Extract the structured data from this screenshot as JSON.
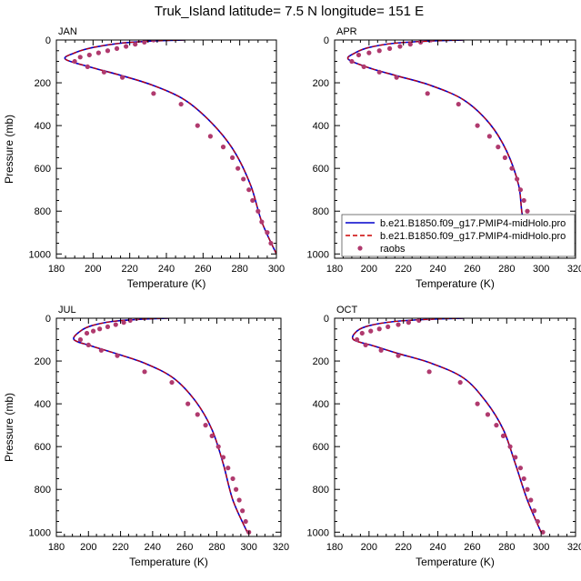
{
  "figure": {
    "title": "Truk_Island  latitude= 7.5 N longitude= 151 E"
  },
  "colors": {
    "model_1": "#0000cc",
    "model_2": "#cc0000",
    "raobs": "#b03a6e",
    "axis": "#000000"
  },
  "legend": {
    "placement": "right of APR panel, bottom",
    "entries": [
      {
        "label": "b.e21.B1850.f09_g17.PMIP4-midHolo.pro",
        "style": "solid",
        "color": "#0000cc"
      },
      {
        "label": "b.e21.B1850.f09_g17.PMIP4-midHolo.pro",
        "style": "dashed",
        "color": "#cc0000"
      },
      {
        "label": "raobs",
        "style": "marker",
        "color": "#b03a6e"
      }
    ]
  },
  "chart_data": [
    {
      "type": "line",
      "panel_label": "JAN",
      "xlabel": "Temperature (K)",
      "ylabel": "Pressure (mb)",
      "xlim": [
        180,
        300
      ],
      "ylim": [
        1020,
        0
      ],
      "xticks": [
        180,
        200,
        220,
        240,
        260,
        280,
        300
      ],
      "yticks": [
        0,
        200,
        400,
        600,
        800,
        1000
      ],
      "grid": false,
      "series": [
        {
          "name": "b.e21.B1850.f09_g17.PMIP4-midHolo.pro",
          "style": "solid",
          "x": [
            250,
            232,
            215,
            200,
            190,
            185,
            200,
            215,
            232,
            250,
            265,
            277,
            286,
            292,
            300
          ],
          "y": [
            0,
            5,
            15,
            35,
            60,
            90,
            130,
            165,
            210,
            280,
            390,
            520,
            680,
            850,
            1000
          ]
        },
        {
          "name": "b.e21.B1850.f09_g17.PMIP4-midHolo.pro",
          "style": "dashed",
          "x": [
            250,
            232,
            215,
            200,
            190,
            185,
            200,
            215,
            232,
            250,
            265,
            277,
            286,
            292,
            300
          ],
          "y": [
            0,
            5,
            15,
            35,
            60,
            90,
            130,
            165,
            210,
            280,
            390,
            520,
            680,
            850,
            1000
          ]
        },
        {
          "name": "raobs",
          "style": "marker",
          "x": [
            233,
            228,
            223,
            218,
            213,
            208,
            203,
            198,
            193,
            190,
            197,
            206,
            216,
            233,
            248,
            257,
            264,
            271,
            276,
            279,
            282,
            285,
            287,
            290,
            292,
            295,
            297
          ],
          "y": [
            0,
            10,
            20,
            30,
            40,
            50,
            60,
            70,
            80,
            100,
            125,
            150,
            175,
            250,
            300,
            400,
            450,
            500,
            550,
            600,
            650,
            700,
            750,
            800,
            850,
            900,
            950
          ]
        }
      ]
    },
    {
      "type": "line",
      "panel_label": "APR",
      "xlabel": "Temperature (K)",
      "ylabel": "",
      "xlim": [
        180,
        320
      ],
      "ylim": [
        1020,
        0
      ],
      "xticks": [
        180,
        200,
        220,
        240,
        260,
        280,
        300,
        320
      ],
      "yticks": [
        0,
        200,
        400,
        600,
        800,
        1000
      ],
      "grid": false,
      "series": [
        {
          "name": "b.e21.B1850.f09_g17.PMIP4-midHolo.pro",
          "style": "solid",
          "x": [
            255,
            235,
            215,
            200,
            192,
            188,
            200,
            215,
            235,
            255,
            270,
            280,
            287,
            290,
            300
          ],
          "y": [
            0,
            5,
            15,
            35,
            60,
            90,
            130,
            165,
            210,
            280,
            390,
            520,
            680,
            850,
            1000
          ]
        },
        {
          "name": "b.e21.B1850.f09_g17.PMIP4-midHolo.pro",
          "style": "dashed",
          "x": [
            255,
            235,
            215,
            200,
            192,
            188,
            200,
            215,
            235,
            255,
            270,
            280,
            287,
            290,
            300
          ],
          "y": [
            0,
            5,
            15,
            35,
            60,
            90,
            130,
            165,
            210,
            280,
            390,
            520,
            680,
            850,
            1000
          ]
        },
        {
          "name": "raobs",
          "style": "marker",
          "x": [
            236,
            230,
            224,
            218,
            212,
            206,
            200,
            194,
            190,
            197,
            206,
            216,
            234,
            252,
            263,
            270,
            275,
            279,
            283,
            286,
            288,
            290,
            292,
            294,
            296,
            298,
            301
          ],
          "y": [
            0,
            10,
            20,
            30,
            40,
            50,
            60,
            70,
            100,
            125,
            150,
            175,
            250,
            300,
            400,
            450,
            500,
            550,
            600,
            650,
            700,
            750,
            800,
            850,
            900,
            950,
            1000
          ]
        }
      ]
    },
    {
      "type": "line",
      "panel_label": "JUL",
      "xlabel": "Temperature (K)",
      "ylabel": "Pressure (mb)",
      "xlim": [
        180,
        320
      ],
      "ylim": [
        1020,
        0
      ],
      "xticks": [
        180,
        200,
        220,
        240,
        260,
        280,
        300,
        320
      ],
      "yticks": [
        0,
        200,
        400,
        600,
        800,
        1000
      ],
      "grid": false,
      "series": [
        {
          "name": "b.e21.B1850.f09_g17.PMIP4-midHolo.pro",
          "style": "solid",
          "x": [
            250,
            232,
            215,
            202,
            195,
            191,
            202,
            217,
            235,
            253,
            267,
            277,
            284,
            290,
            299
          ],
          "y": [
            0,
            5,
            15,
            35,
            60,
            100,
            130,
            165,
            210,
            280,
            390,
            520,
            680,
            850,
            1000
          ]
        },
        {
          "name": "b.e21.B1850.f09_g17.PMIP4-midHolo.pro",
          "style": "dashed",
          "x": [
            250,
            232,
            215,
            202,
            195,
            191,
            202,
            217,
            235,
            253,
            267,
            277,
            284,
            290,
            299
          ],
          "y": [
            0,
            5,
            15,
            35,
            60,
            100,
            130,
            165,
            210,
            280,
            390,
            520,
            680,
            850,
            1000
          ]
        },
        {
          "name": "raobs",
          "style": "marker",
          "x": [
            230,
            226,
            222,
            217,
            212,
            207,
            203,
            199,
            195,
            200,
            208,
            218,
            235,
            252,
            262,
            268,
            273,
            277,
            281,
            284,
            287,
            290,
            292,
            294,
            296,
            298,
            300
          ],
          "y": [
            0,
            10,
            20,
            30,
            40,
            50,
            60,
            70,
            100,
            125,
            150,
            175,
            250,
            300,
            400,
            450,
            500,
            550,
            600,
            650,
            700,
            750,
            800,
            850,
            900,
            950,
            1000
          ]
        }
      ]
    },
    {
      "type": "line",
      "panel_label": "OCT",
      "xlabel": "Temperature (K)",
      "ylabel": "",
      "xlim": [
        180,
        320
      ],
      "ylim": [
        1020,
        0
      ],
      "xticks": [
        180,
        200,
        220,
        240,
        260,
        280,
        300,
        320
      ],
      "yticks": [
        0,
        200,
        400,
        600,
        800,
        1000
      ],
      "grid": false,
      "series": [
        {
          "name": "b.e21.B1850.f09_g17.PMIP4-midHolo.pro",
          "style": "solid",
          "x": [
            255,
            235,
            215,
            200,
            193,
            191,
            203,
            217,
            236,
            255,
            268,
            278,
            285,
            292,
            300
          ],
          "y": [
            0,
            5,
            15,
            35,
            60,
            100,
            130,
            165,
            210,
            280,
            390,
            520,
            680,
            850,
            1000
          ]
        },
        {
          "name": "b.e21.B1850.f09_g17.PMIP4-midHolo.pro",
          "style": "dashed",
          "x": [
            255,
            235,
            215,
            200,
            193,
            191,
            203,
            217,
            236,
            255,
            268,
            278,
            285,
            292,
            300
          ],
          "y": [
            0,
            5,
            15,
            35,
            60,
            100,
            130,
            165,
            210,
            280,
            390,
            520,
            680,
            850,
            1000
          ]
        },
        {
          "name": "raobs",
          "style": "marker",
          "x": [
            235,
            229,
            223,
            217,
            211,
            206,
            201,
            196,
            193,
            198,
            207,
            217,
            235,
            253,
            263,
            269,
            274,
            278,
            282,
            285,
            288,
            290,
            292,
            294,
            296,
            298,
            301
          ],
          "y": [
            0,
            10,
            20,
            30,
            40,
            50,
            60,
            70,
            100,
            125,
            150,
            175,
            250,
            300,
            400,
            450,
            500,
            550,
            600,
            650,
            700,
            750,
            800,
            850,
            900,
            950,
            1000
          ]
        }
      ]
    }
  ]
}
